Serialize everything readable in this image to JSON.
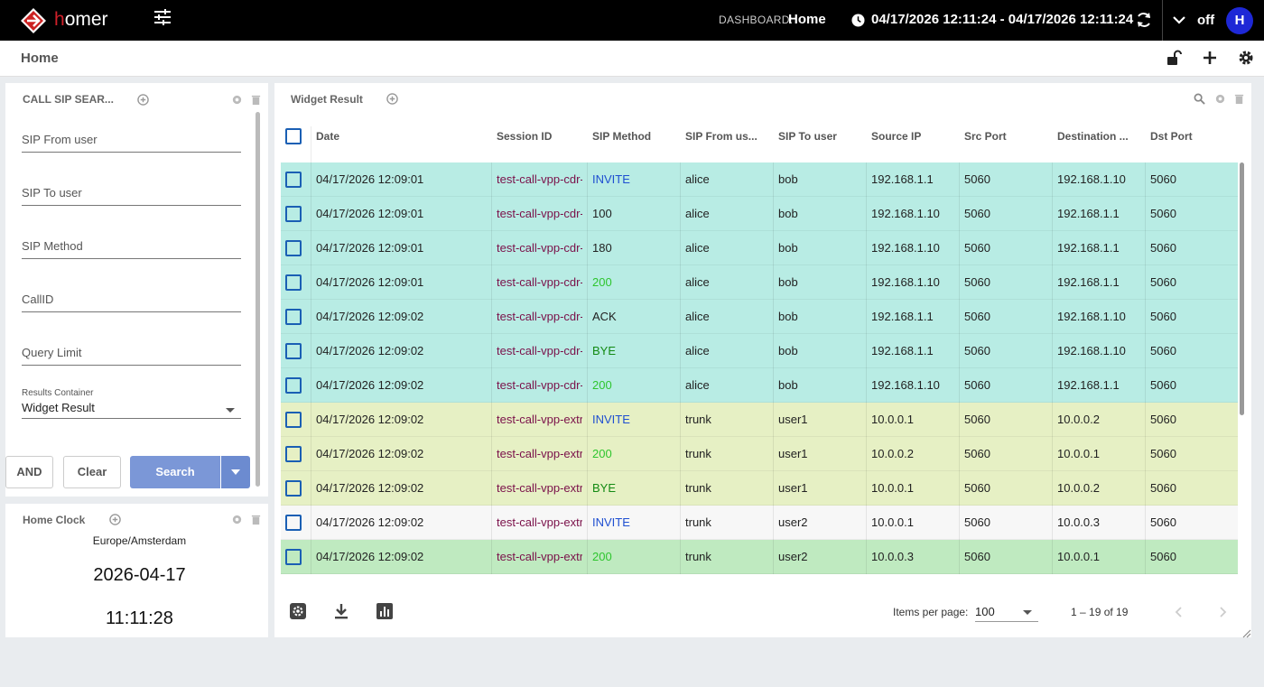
{
  "app": {
    "brand_first": "h",
    "brand_rest": "omer"
  },
  "header": {
    "dashboard_label": "DASHBOARD:",
    "dashboard_name": "Home",
    "time_range": "04/17/2026 12:11:24 - 04/17/2026 12:11:24",
    "refresh_state": "off",
    "avatar_initial": "H"
  },
  "breadcrumb": "Home",
  "search_panel": {
    "title": "CALL SIP SEAR...",
    "fields": [
      "SIP From user",
      "SIP To user",
      "SIP Method",
      "CallID",
      "Query Limit"
    ],
    "results_container_label": "Results Container",
    "results_container_value": "Widget Result",
    "and_label": "AND",
    "clear_label": "Clear",
    "search_label": "Search"
  },
  "clock_panel": {
    "title": "Home Clock",
    "zone": "Europe/Amsterdam",
    "date": "2026-04-17",
    "time": "11:11:28"
  },
  "result_panel": {
    "title": "Widget Result",
    "columns": [
      "Date",
      "Session ID",
      "SIP Method",
      "SIP From us...",
      "SIP To user",
      "Source IP",
      "Src Port",
      "Destination ...",
      "Dst Port"
    ],
    "rows": [
      {
        "date": "04/17/2026 12:09:01",
        "sid": "test-call-vpp-cdr-",
        "method": "INVITE",
        "from": "alice",
        "to": "bob",
        "src": "192.168.1.1",
        "sport": "5060",
        "dst": "192.168.1.10",
        "dport": "5060",
        "bg": "#b8ece4",
        "mcolor": "#1f4fd1"
      },
      {
        "date": "04/17/2026 12:09:01",
        "sid": "test-call-vpp-cdr-",
        "method": "100",
        "from": "alice",
        "to": "bob",
        "src": "192.168.1.10",
        "sport": "5060",
        "dst": "192.168.1.1",
        "dport": "5060",
        "bg": "#b8ece4",
        "mcolor": "#222222"
      },
      {
        "date": "04/17/2026 12:09:01",
        "sid": "test-call-vpp-cdr-",
        "method": "180",
        "from": "alice",
        "to": "bob",
        "src": "192.168.1.10",
        "sport": "5060",
        "dst": "192.168.1.1",
        "dport": "5060",
        "bg": "#b8ece4",
        "mcolor": "#222222"
      },
      {
        "date": "04/17/2026 12:09:01",
        "sid": "test-call-vpp-cdr-",
        "method": "200",
        "from": "alice",
        "to": "bob",
        "src": "192.168.1.10",
        "sport": "5060",
        "dst": "192.168.1.1",
        "dport": "5060",
        "bg": "#b8ece4",
        "mcolor": "#2ec52e"
      },
      {
        "date": "04/17/2026 12:09:02",
        "sid": "test-call-vpp-cdr-",
        "method": "ACK",
        "from": "alice",
        "to": "bob",
        "src": "192.168.1.1",
        "sport": "5060",
        "dst": "192.168.1.10",
        "dport": "5060",
        "bg": "#b8ece4",
        "mcolor": "#222222"
      },
      {
        "date": "04/17/2026 12:09:02",
        "sid": "test-call-vpp-cdr-",
        "method": "BYE",
        "from": "alice",
        "to": "bob",
        "src": "192.168.1.1",
        "sport": "5060",
        "dst": "192.168.1.10",
        "dport": "5060",
        "bg": "#b8ece4",
        "mcolor": "#138a13"
      },
      {
        "date": "04/17/2026 12:09:02",
        "sid": "test-call-vpp-cdr-",
        "method": "200",
        "from": "alice",
        "to": "bob",
        "src": "192.168.1.10",
        "sport": "5060",
        "dst": "192.168.1.1",
        "dport": "5060",
        "bg": "#b8ece4",
        "mcolor": "#2ec52e"
      },
      {
        "date": "04/17/2026 12:09:02",
        "sid": "test-call-vpp-extr",
        "method": "INVITE",
        "from": "trunk",
        "to": "user1",
        "src": "10.0.0.1",
        "sport": "5060",
        "dst": "10.0.0.2",
        "dport": "5060",
        "bg": "#e6f0c4",
        "mcolor": "#1f4fd1"
      },
      {
        "date": "04/17/2026 12:09:02",
        "sid": "test-call-vpp-extr",
        "method": "200",
        "from": "trunk",
        "to": "user1",
        "src": "10.0.0.2",
        "sport": "5060",
        "dst": "10.0.0.1",
        "dport": "5060",
        "bg": "#e6f0c4",
        "mcolor": "#2ec52e"
      },
      {
        "date": "04/17/2026 12:09:02",
        "sid": "test-call-vpp-extr",
        "method": "BYE",
        "from": "trunk",
        "to": "user1",
        "src": "10.0.0.1",
        "sport": "5060",
        "dst": "10.0.0.2",
        "dport": "5060",
        "bg": "#e6f0c4",
        "mcolor": "#138a13"
      },
      {
        "date": "04/17/2026 12:09:02",
        "sid": "test-call-vpp-extr",
        "method": "INVITE",
        "from": "trunk",
        "to": "user2",
        "src": "10.0.0.1",
        "sport": "5060",
        "dst": "10.0.0.3",
        "dport": "5060",
        "bg": "#f7f7f7",
        "mcolor": "#1f4fd1"
      },
      {
        "date": "04/17/2026 12:09:02",
        "sid": "test-call-vpp-extr",
        "method": "200",
        "from": "trunk",
        "to": "user2",
        "src": "10.0.0.3",
        "sport": "5060",
        "dst": "10.0.0.1",
        "dport": "5060",
        "bg": "#bfeac0",
        "mcolor": "#2ec52e"
      }
    ],
    "session_id_color": "#7a1049",
    "items_per_page_label": "Items per page:",
    "items_per_page_value": "100",
    "range_label": "1 – 19 of 19"
  },
  "icons": [
    "tune-icon",
    "clock-icon",
    "refresh-icon",
    "chevron-down-icon",
    "lock-open-icon",
    "add-icon",
    "gear-icon",
    "add-circle-icon",
    "trash-icon",
    "search-icon",
    "download-icon",
    "bar-chart-icon",
    "chevron-left-icon",
    "chevron-right-icon"
  ]
}
